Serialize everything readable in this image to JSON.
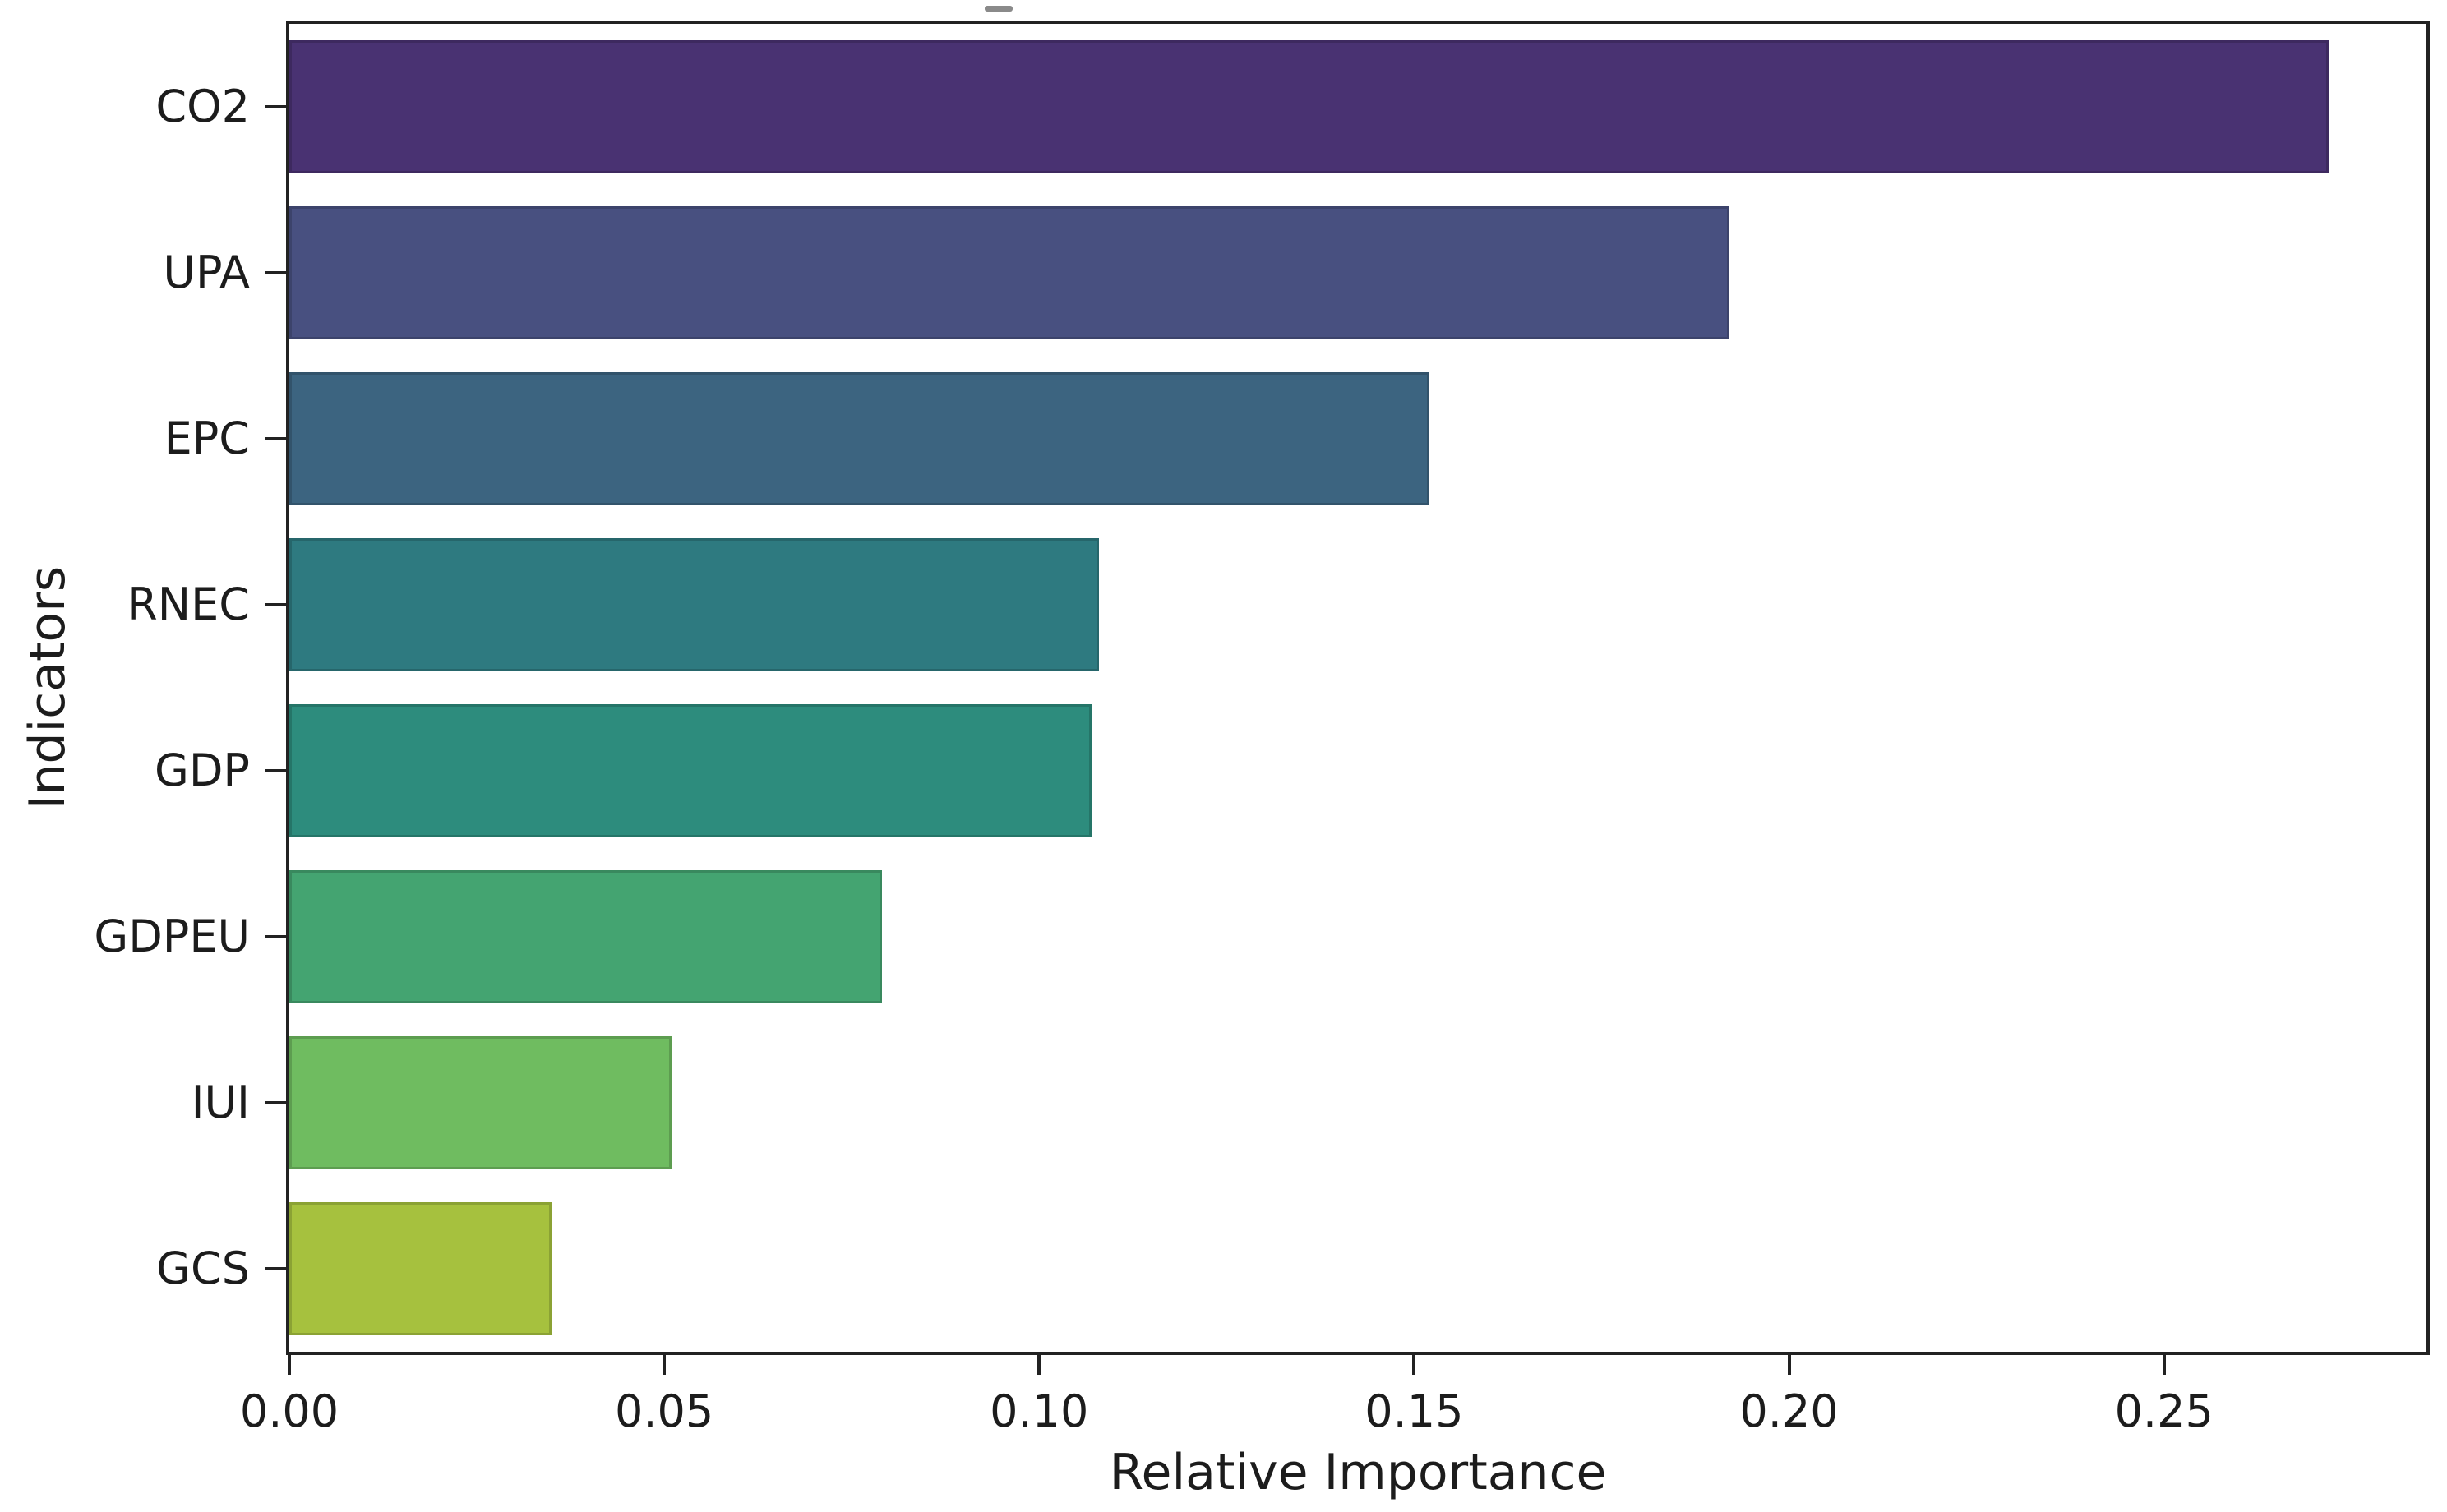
{
  "chart_data": {
    "type": "bar",
    "orientation": "horizontal",
    "title": "",
    "xlabel": "Relative Importance",
    "ylabel": "Indicators",
    "categories": [
      "CO2",
      "UPA",
      "EPC",
      "RNEC",
      "GDP",
      "GDPEU",
      "IUI",
      "GCS"
    ],
    "values": [
      0.272,
      0.192,
      0.152,
      0.108,
      0.107,
      0.079,
      0.051,
      0.035
    ],
    "bar_colors": [
      "#493272",
      "#485080",
      "#3c6480",
      "#2e7a80",
      "#2d8c7d",
      "#44a471",
      "#6fbc60",
      "#a6c13e"
    ],
    "xlim": [
      0,
      0.285
    ],
    "xtick_labels": [
      "0.00",
      "0.05",
      "0.10",
      "0.15",
      "0.20",
      "0.25"
    ],
    "xtick_values": [
      0.0,
      0.05,
      0.1,
      0.15,
      0.2,
      0.25
    ],
    "grid": false,
    "legend": null,
    "spine_color": "#222222",
    "text_color": "#1c1c1c",
    "background_color": "#ffffff"
  }
}
